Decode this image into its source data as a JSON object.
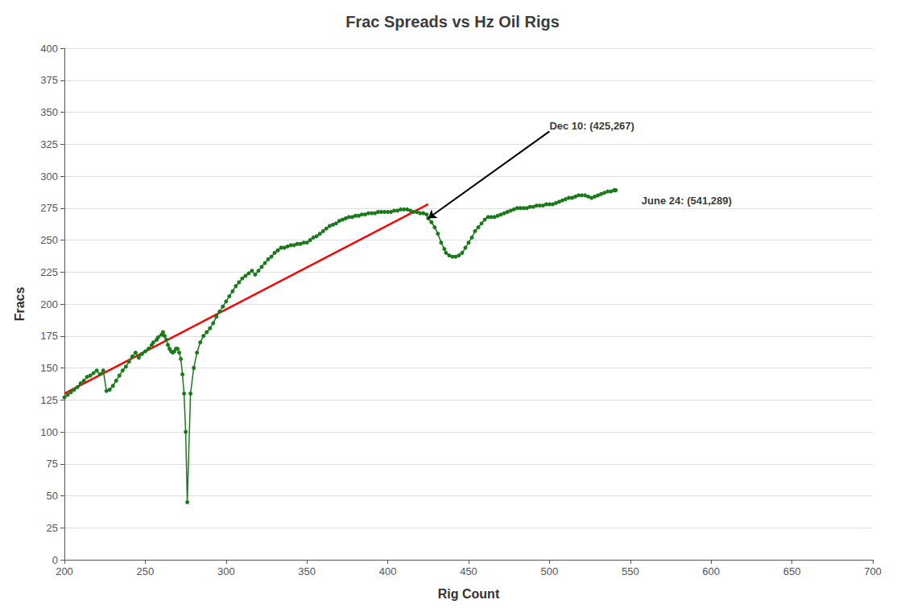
{
  "chart_data": {
    "type": "line",
    "title": "Frac Spreads vs Hz Oil Rigs",
    "xlabel": "Rig Count",
    "ylabel": "Fracs",
    "xlim": [
      200,
      700
    ],
    "ylim": [
      0,
      400
    ],
    "xticks": [
      200,
      250,
      300,
      350,
      400,
      450,
      500,
      550,
      600,
      650,
      700
    ],
    "yticks": [
      0,
      25,
      50,
      75,
      100,
      125,
      150,
      175,
      200,
      225,
      250,
      275,
      300,
      325,
      350,
      375,
      400
    ],
    "grid": "y",
    "series": [
      {
        "color": "#ff0000",
        "x": [
          200,
          425
        ],
        "values": [
          130,
          278
        ]
      },
      {
        "color": "#1a7a1a",
        "marker": "circle",
        "x": [
          200,
          202,
          204,
          206,
          208,
          210,
          212,
          214,
          216,
          218,
          220,
          222,
          224,
          226,
          228,
          230,
          232,
          234,
          236,
          238,
          240,
          242,
          244,
          246,
          248,
          250,
          252,
          254,
          255,
          257,
          258,
          260,
          261,
          262,
          263,
          264,
          265,
          266,
          267,
          268,
          269,
          270,
          271,
          272,
          273,
          274,
          275,
          276,
          278,
          280,
          282,
          284,
          286,
          288,
          290,
          292,
          294,
          296,
          298,
          300,
          302,
          304,
          306,
          308,
          310,
          312,
          314,
          316,
          318,
          320,
          322,
          324,
          326,
          328,
          330,
          332,
          334,
          336,
          338,
          340,
          342,
          344,
          346,
          348,
          350,
          352,
          354,
          356,
          358,
          360,
          362,
          364,
          366,
          368,
          370,
          372,
          374,
          376,
          378,
          380,
          382,
          384,
          386,
          388,
          390,
          392,
          394,
          396,
          398,
          400,
          402,
          404,
          406,
          408,
          410,
          412,
          414,
          416,
          418,
          420,
          422,
          424,
          425,
          427,
          429,
          431,
          433,
          435,
          436,
          438,
          440,
          442,
          444,
          446,
          448,
          450,
          452,
          454,
          456,
          458,
          460,
          462,
          464,
          466,
          468,
          470,
          472,
          474,
          476,
          478,
          480,
          482,
          484,
          486,
          488,
          490,
          492,
          494,
          496,
          498,
          500,
          502,
          504,
          506,
          508,
          510,
          512,
          514,
          516,
          518,
          520,
          522,
          524,
          526,
          528,
          530,
          532,
          534,
          536,
          538,
          540,
          541
        ],
        "values": [
          127,
          129,
          131,
          133,
          135,
          138,
          140,
          143,
          144,
          146,
          148,
          145,
          148,
          132,
          133,
          136,
          140,
          144,
          148,
          151,
          155,
          159,
          162,
          158,
          161,
          163,
          165,
          168,
          170,
          172,
          174,
          176,
          178,
          175,
          172,
          168,
          165,
          163,
          162,
          163,
          165,
          165,
          162,
          157,
          145,
          130,
          100,
          45,
          130,
          150,
          162,
          170,
          175,
          178,
          181,
          185,
          190,
          194,
          198,
          202,
          206,
          210,
          214,
          217,
          220,
          222,
          224,
          226,
          223,
          226,
          229,
          232,
          235,
          237,
          240,
          242,
          244,
          244,
          245,
          246,
          246,
          247,
          247,
          248,
          248,
          250,
          252,
          253,
          255,
          257,
          259,
          261,
          262,
          263,
          265,
          266,
          267,
          268,
          268,
          269,
          269,
          270,
          270,
          271,
          271,
          271,
          272,
          272,
          272,
          272,
          272,
          273,
          273,
          274,
          274,
          274,
          273,
          272,
          272,
          271,
          271,
          270,
          267,
          264,
          260,
          255,
          248,
          243,
          240,
          238,
          237,
          237,
          238,
          240,
          244,
          248,
          252,
          257,
          260,
          263,
          266,
          268,
          268,
          268,
          269,
          270,
          271,
          272,
          273,
          274,
          275,
          275,
          275,
          275,
          276,
          276,
          277,
          277,
          277,
          278,
          278,
          278,
          279,
          280,
          281,
          282,
          283,
          283,
          284,
          285,
          285,
          285,
          284,
          283,
          284,
          285,
          286,
          287,
          288,
          288,
          289,
          289
        ]
      }
    ],
    "annotations": [
      {
        "text": "Dec 10: (425,267)",
        "x": 500,
        "y": 335,
        "arrow_to": [
          425,
          267
        ]
      },
      {
        "text": "June 24: (541,289)",
        "x": 557,
        "y": 281
      }
    ]
  }
}
